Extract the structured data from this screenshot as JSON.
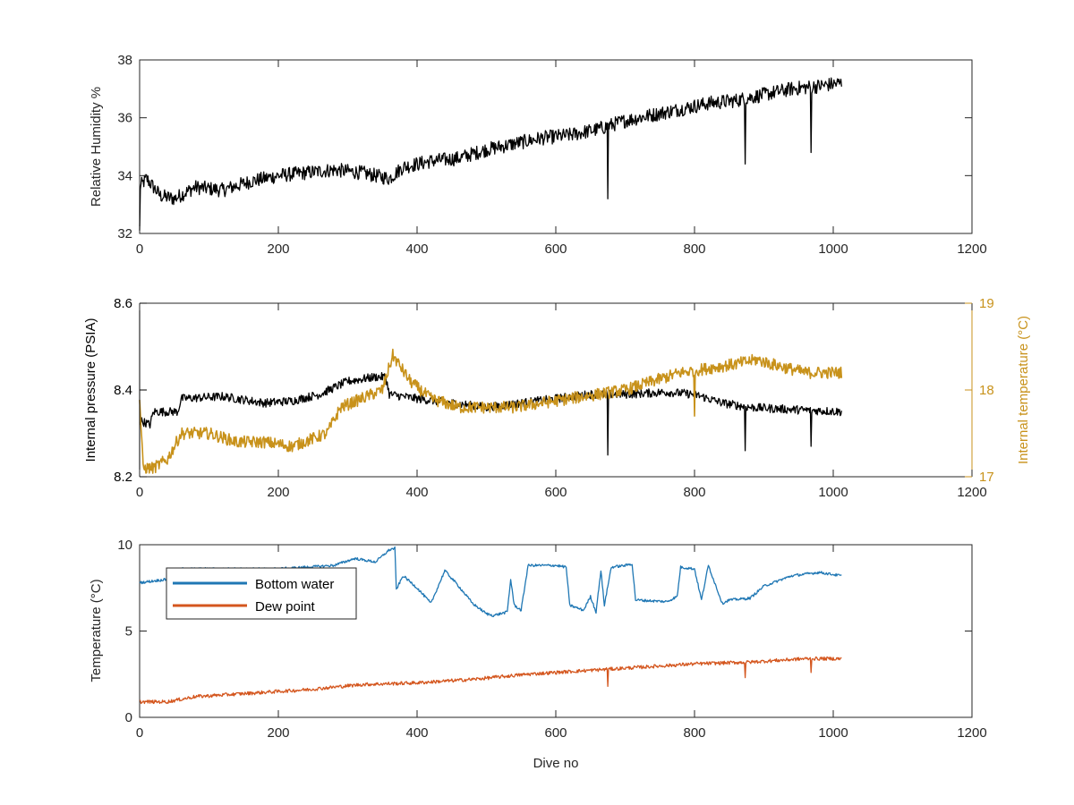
{
  "colors": {
    "black": "#000000",
    "gold": "#c8921b",
    "blue": "#1f77b4",
    "orange": "#d4561e",
    "axis": "#262626"
  },
  "chart_data": [
    {
      "type": "line",
      "ylabel": "Relative Humidity %",
      "xlim": [
        0,
        1200
      ],
      "ylim": [
        32,
        38
      ],
      "xticks": [
        "0",
        "200",
        "400",
        "600",
        "800",
        "1000",
        "1200"
      ],
      "yticks": [
        "32",
        "34",
        "36",
        "38"
      ],
      "series": [
        {
          "color": "#000000",
          "points": [
            [
              0,
              33.6
            ],
            [
              10,
              33.9
            ],
            [
              30,
              33.3
            ],
            [
              50,
              33.2
            ],
            [
              80,
              33.6
            ],
            [
              120,
              33.5
            ],
            [
              160,
              33.8
            ],
            [
              200,
              34.0
            ],
            [
              240,
              34.1
            ],
            [
              280,
              34.2
            ],
            [
              320,
              34.1
            ],
            [
              360,
              33.9
            ],
            [
              380,
              34.3
            ],
            [
              420,
              34.5
            ],
            [
              460,
              34.6
            ],
            [
              500,
              34.9
            ],
            [
              540,
              35.1
            ],
            [
              580,
              35.3
            ],
            [
              620,
              35.4
            ],
            [
              660,
              35.6
            ],
            [
              700,
              35.9
            ],
            [
              740,
              36.1
            ],
            [
              780,
              36.3
            ],
            [
              820,
              36.5
            ],
            [
              860,
              36.6
            ],
            [
              900,
              36.8
            ],
            [
              940,
              37.0
            ],
            [
              980,
              37.1
            ],
            [
              1012,
              37.2
            ]
          ],
          "noise": 0.5,
          "dips": [
            [
              0,
              32.1
            ],
            [
              675,
              33.2
            ],
            [
              873,
              34.4
            ],
            [
              968,
              34.8
            ]
          ]
        }
      ]
    },
    {
      "type": "line",
      "ylabel": "Internal pressure (PSIA)",
      "ylabel_right": "Internal temperature (°C)",
      "xlim": [
        0,
        1200
      ],
      "ylim": [
        8.2,
        8.6
      ],
      "ylim_right": [
        17,
        19
      ],
      "xticks": [
        "0",
        "200",
        "400",
        "600",
        "800",
        "1000",
        "1200"
      ],
      "yticks": [
        "8.2",
        "8.4",
        "8.6"
      ],
      "yticks_right": [
        "17",
        "18",
        "19"
      ],
      "series": [
        {
          "axis": "left",
          "color": "#000000",
          "points": [
            [
              0,
              8.33
            ],
            [
              15,
              8.32
            ],
            [
              20,
              8.35
            ],
            [
              55,
              8.35
            ],
            [
              60,
              8.38
            ],
            [
              120,
              8.385
            ],
            [
              180,
              8.37
            ],
            [
              220,
              8.375
            ],
            [
              260,
              8.39
            ],
            [
              300,
              8.42
            ],
            [
              340,
              8.43
            ],
            [
              355,
              8.43
            ],
            [
              360,
              8.39
            ],
            [
              400,
              8.38
            ],
            [
              450,
              8.37
            ],
            [
              500,
              8.36
            ],
            [
              550,
              8.37
            ],
            [
              600,
              8.38
            ],
            [
              650,
              8.39
            ],
            [
              700,
              8.39
            ],
            [
              760,
              8.395
            ],
            [
              800,
              8.39
            ],
            [
              840,
              8.37
            ],
            [
              880,
              8.36
            ],
            [
              940,
              8.355
            ],
            [
              1012,
              8.35
            ]
          ],
          "noise": 0.02,
          "dips": [
            [
              675,
              8.25
            ],
            [
              873,
              8.26
            ],
            [
              968,
              8.27
            ]
          ]
        },
        {
          "axis": "right",
          "color": "#c8921b",
          "points": [
            [
              0,
              17.9
            ],
            [
              5,
              17.1
            ],
            [
              20,
              17.1
            ],
            [
              40,
              17.2
            ],
            [
              60,
              17.5
            ],
            [
              100,
              17.5
            ],
            [
              140,
              17.4
            ],
            [
              180,
              17.4
            ],
            [
              220,
              17.35
            ],
            [
              270,
              17.5
            ],
            [
              290,
              17.8
            ],
            [
              320,
              17.9
            ],
            [
              350,
              18.0
            ],
            [
              365,
              18.4
            ],
            [
              390,
              18.1
            ],
            [
              420,
              17.9
            ],
            [
              460,
              17.8
            ],
            [
              500,
              17.8
            ],
            [
              540,
              17.8
            ],
            [
              580,
              17.85
            ],
            [
              620,
              17.9
            ],
            [
              660,
              17.95
            ],
            [
              700,
              18.0
            ],
            [
              740,
              18.1
            ],
            [
              780,
              18.2
            ],
            [
              820,
              18.25
            ],
            [
              860,
              18.3
            ],
            [
              890,
              18.35
            ],
            [
              910,
              18.3
            ],
            [
              960,
              18.2
            ],
            [
              1012,
              18.2
            ]
          ],
          "noise": 0.14,
          "dips": [
            [
              800,
              17.7
            ]
          ]
        }
      ]
    },
    {
      "type": "line",
      "ylabel": "Temperature (°C)",
      "xlabel": "Dive no",
      "xlim": [
        0,
        1200
      ],
      "ylim": [
        0,
        10
      ],
      "xticks": [
        "0",
        "200",
        "400",
        "600",
        "800",
        "1000",
        "1200"
      ],
      "yticks": [
        "0",
        "5",
        "10"
      ],
      "legend_position": "top-left",
      "series": [
        {
          "name": "Bottom water",
          "color": "#1f77b4",
          "points": [
            [
              0,
              7.8
            ],
            [
              40,
              8.0
            ],
            [
              60,
              8.6
            ],
            [
              170,
              8.6
            ],
            [
              200,
              8.6
            ],
            [
              280,
              8.8
            ],
            [
              310,
              9.2
            ],
            [
              340,
              9.0
            ],
            [
              360,
              9.7
            ],
            [
              368,
              9.8
            ],
            [
              370,
              7.4
            ],
            [
              380,
              8.2
            ],
            [
              400,
              7.5
            ],
            [
              420,
              6.6
            ],
            [
              440,
              8.5
            ],
            [
              460,
              7.6
            ],
            [
              480,
              6.6
            ],
            [
              500,
              6.0
            ],
            [
              510,
              5.9
            ],
            [
              530,
              6.1
            ],
            [
              535,
              8.0
            ],
            [
              540,
              6.5
            ],
            [
              550,
              6.2
            ],
            [
              560,
              8.8
            ],
            [
              600,
              8.8
            ],
            [
              615,
              8.7
            ],
            [
              620,
              6.5
            ],
            [
              640,
              6.2
            ],
            [
              650,
              7.0
            ],
            [
              658,
              6.1
            ],
            [
              665,
              8.5
            ],
            [
              670,
              6.5
            ],
            [
              680,
              8.7
            ],
            [
              700,
              8.8
            ],
            [
              710,
              8.9
            ],
            [
              715,
              6.8
            ],
            [
              760,
              6.7
            ],
            [
              775,
              7.0
            ],
            [
              780,
              8.7
            ],
            [
              800,
              8.6
            ],
            [
              810,
              6.8
            ],
            [
              820,
              8.8
            ],
            [
              840,
              6.6
            ],
            [
              850,
              6.8
            ],
            [
              880,
              6.9
            ],
            [
              900,
              7.6
            ],
            [
              940,
              8.2
            ],
            [
              980,
              8.4
            ],
            [
              1012,
              8.2
            ]
          ],
          "noise": 0.15
        },
        {
          "name": "Dew point",
          "color": "#d4561e",
          "points": [
            [
              0,
              0.9
            ],
            [
              40,
              0.9
            ],
            [
              80,
              1.2
            ],
            [
              160,
              1.4
            ],
            [
              240,
              1.6
            ],
            [
              320,
              1.9
            ],
            [
              400,
              2.0
            ],
            [
              480,
              2.2
            ],
            [
              560,
              2.5
            ],
            [
              640,
              2.7
            ],
            [
              720,
              2.9
            ],
            [
              800,
              3.1
            ],
            [
              880,
              3.2
            ],
            [
              960,
              3.4
            ],
            [
              1012,
              3.4
            ]
          ],
          "noise": 0.2,
          "dips": [
            [
              675,
              1.8
            ],
            [
              873,
              2.3
            ],
            [
              968,
              2.6
            ]
          ]
        }
      ]
    }
  ]
}
